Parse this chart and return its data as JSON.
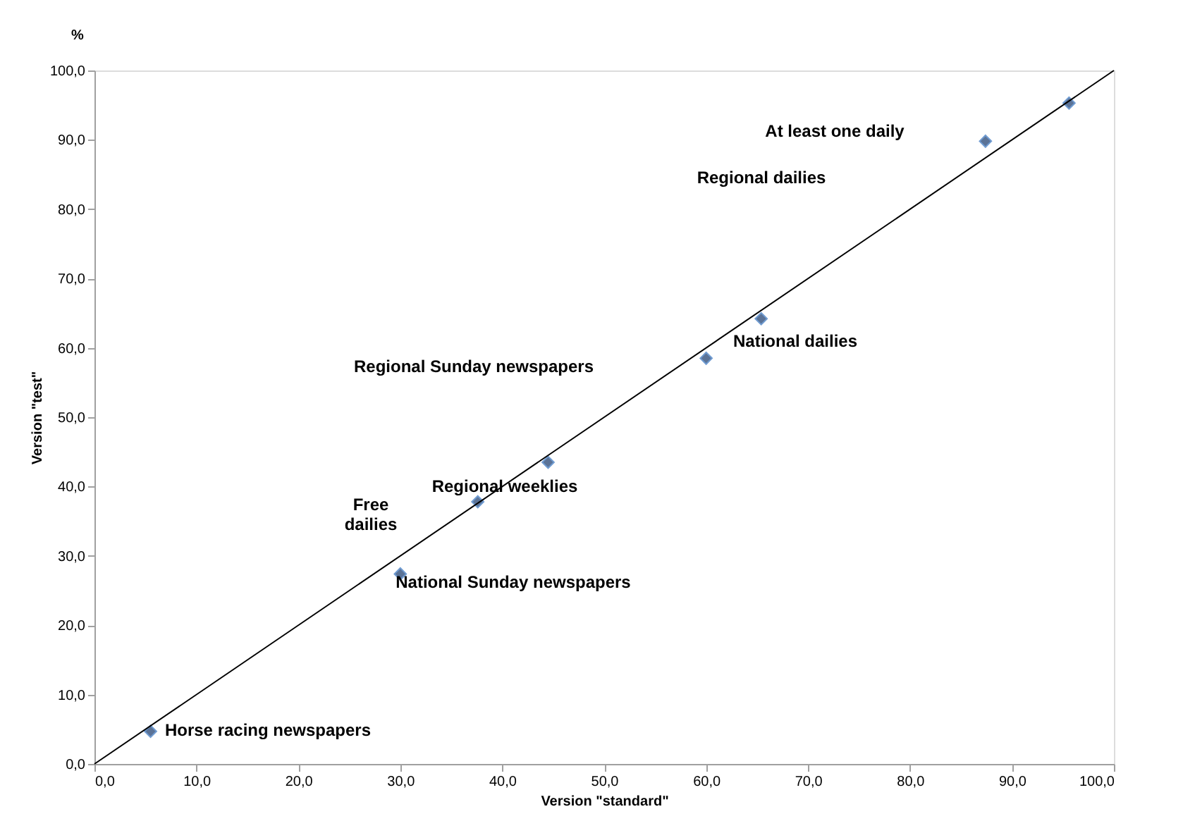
{
  "chart_data": {
    "type": "scatter",
    "xlabel": "Version \"standard\"",
    "ylabel": "Version \"test\"",
    "xlim": [
      0,
      100
    ],
    "ylim": [
      0,
      100
    ],
    "xticks": [
      {
        "value": 0,
        "label": "0,0"
      },
      {
        "value": 10,
        "label": "10,0"
      },
      {
        "value": 20,
        "label": "20,0"
      },
      {
        "value": 30,
        "label": "30,0"
      },
      {
        "value": 40,
        "label": "40,0"
      },
      {
        "value": 50,
        "label": "50,0"
      },
      {
        "value": 60,
        "label": "60,0"
      },
      {
        "value": 70,
        "label": "70,0"
      },
      {
        "value": 80,
        "label": "80,0"
      },
      {
        "value": 90,
        "label": "90,0"
      },
      {
        "value": 100,
        "label": "100,0"
      }
    ],
    "yticks": [
      {
        "value": 0,
        "label": "0,0"
      },
      {
        "value": 10,
        "label": "10,0"
      },
      {
        "value": 20,
        "label": "20,0"
      },
      {
        "value": 30,
        "label": "30,0"
      },
      {
        "value": 40,
        "label": "40,0"
      },
      {
        "value": 50,
        "label": "50,0"
      },
      {
        "value": 60,
        "label": "60,0"
      },
      {
        "value": 70,
        "label": "70,0"
      },
      {
        "value": 80,
        "label": "80,0"
      },
      {
        "value": 90,
        "label": "90,0"
      },
      {
        "value": 100,
        "label": "100,0"
      }
    ],
    "grid": false,
    "series": [
      {
        "marker": "diamond",
        "color": "#5b7397",
        "x": [
          5.5,
          30.0,
          37.6,
          44.5,
          60.0,
          65.4,
          87.4,
          95.6
        ],
        "values": [
          4.7,
          27.4,
          37.8,
          43.5,
          58.5,
          64.2,
          89.8,
          95.3
        ]
      },
      {
        "type": "line",
        "marker": "none",
        "line_style": "solid",
        "color": "#000000",
        "x": [
          0,
          100
        ],
        "values": [
          0,
          100
        ]
      }
    ],
    "annotations": [
      "%",
      "At least one daily",
      "Regional  dailies",
      "National dailies",
      "Regional Sunday newspapers",
      "Free\ndailies",
      "Regional  weeklies",
      "National Sunday newspapers",
      "Horse racing newspapers"
    ]
  }
}
